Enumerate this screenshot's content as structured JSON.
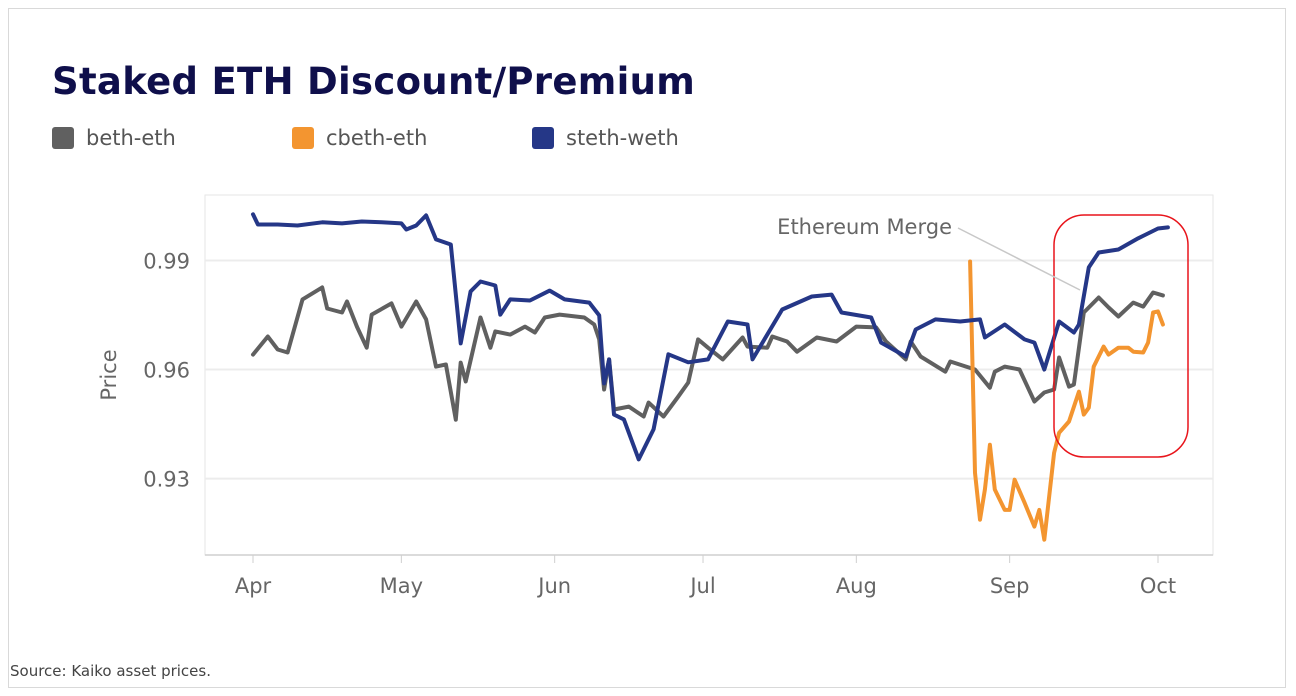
{
  "source": "Source: Kaiko asset prices.",
  "chart_data": {
    "type": "line",
    "title": "Staked ETH Discount/Premium",
    "xlabel": "",
    "ylabel": "Price",
    "legend_position": "top-left",
    "grid": true,
    "ylim": [
      0.909,
      1.008
    ],
    "y_ticks": [
      "0.93",
      "0.96",
      "0.99"
    ],
    "x_ticks": [
      {
        "label": "Apr",
        "date": "04-01"
      },
      {
        "label": "May",
        "date": "05-01"
      },
      {
        "label": "Jun",
        "date": "06-01"
      },
      {
        "label": "Jul",
        "date": "07-01"
      },
      {
        "label": "Aug",
        "date": "08-01"
      },
      {
        "label": "Sep",
        "date": "09-01"
      },
      {
        "label": "Oct",
        "date": "10-01"
      }
    ],
    "annotation": {
      "text": "Ethereum Merge",
      "date": "09-15",
      "highlight_color": "#e8141b"
    },
    "series": [
      {
        "name": "beth-eth",
        "color": "#606060",
        "points": [
          [
            "04-01",
            0.9641
          ],
          [
            "04-04",
            0.9691
          ],
          [
            "04-06",
            0.9655
          ],
          [
            "04-08",
            0.9647
          ],
          [
            "04-11",
            0.9793
          ],
          [
            "04-15",
            0.9826
          ],
          [
            "04-16",
            0.9768
          ],
          [
            "04-19",
            0.9757
          ],
          [
            "04-20",
            0.9787
          ],
          [
            "04-22",
            0.9718
          ],
          [
            "04-24",
            0.966
          ],
          [
            "04-25",
            0.9751
          ],
          [
            "04-29",
            0.9782
          ],
          [
            "05-01",
            0.9718
          ],
          [
            "05-04",
            0.9787
          ],
          [
            "05-06",
            0.9738
          ],
          [
            "05-08",
            0.9608
          ],
          [
            "05-10",
            0.9614
          ],
          [
            "05-12",
            0.9462
          ],
          [
            "05-13",
            0.9619
          ],
          [
            "05-14",
            0.9567
          ],
          [
            "05-17",
            0.9743
          ],
          [
            "05-19",
            0.966
          ],
          [
            "05-20",
            0.9705
          ],
          [
            "05-23",
            0.9696
          ],
          [
            "05-26",
            0.9718
          ],
          [
            "05-28",
            0.9702
          ],
          [
            "05-30",
            0.9743
          ],
          [
            "06-02",
            0.9751
          ],
          [
            "06-07",
            0.9743
          ],
          [
            "06-09",
            0.9724
          ],
          [
            "06-10",
            0.9683
          ],
          [
            "06-11",
            0.9545
          ],
          [
            "06-12",
            0.9628
          ],
          [
            "06-13",
            0.949
          ],
          [
            "06-16",
            0.9498
          ],
          [
            "06-19",
            0.9471
          ],
          [
            "06-20",
            0.9509
          ],
          [
            "06-23",
            0.9471
          ],
          [
            "06-26",
            0.9526
          ],
          [
            "06-28",
            0.9564
          ],
          [
            "06-30",
            0.9683
          ],
          [
            "07-02",
            0.966
          ],
          [
            "07-05",
            0.9628
          ],
          [
            "07-09",
            0.9688
          ],
          [
            "07-10",
            0.9663
          ],
          [
            "07-14",
            0.966
          ],
          [
            "07-15",
            0.9691
          ],
          [
            "07-18",
            0.9677
          ],
          [
            "07-20",
            0.9649
          ],
          [
            "07-24",
            0.9688
          ],
          [
            "07-28",
            0.9677
          ],
          [
            "08-01",
            0.9718
          ],
          [
            "08-05",
            0.9716
          ],
          [
            "08-07",
            0.9677
          ],
          [
            "08-11",
            0.9628
          ],
          [
            "08-12",
            0.9677
          ],
          [
            "08-14",
            0.9636
          ],
          [
            "08-19",
            0.9594
          ],
          [
            "08-20",
            0.9622
          ],
          [
            "08-25",
            0.96
          ],
          [
            "08-28",
            0.955
          ],
          [
            "08-29",
            0.9594
          ],
          [
            "08-31",
            0.9608
          ],
          [
            "09-03",
            0.96
          ],
          [
            "09-06",
            0.9512
          ],
          [
            "09-08",
            0.9537
          ],
          [
            "09-10",
            0.9545
          ],
          [
            "09-11",
            0.9633
          ],
          [
            "09-13",
            0.9553
          ],
          [
            "09-14",
            0.9559
          ],
          [
            "09-16",
            0.9757
          ],
          [
            "09-19",
            0.9798
          ],
          [
            "09-21",
            0.9771
          ],
          [
            "09-23",
            0.9746
          ],
          [
            "09-26",
            0.9784
          ],
          [
            "09-28",
            0.9773
          ],
          [
            "09-30",
            0.9812
          ],
          [
            "10-02",
            0.9804
          ]
        ]
      },
      {
        "name": "cbeth-eth",
        "color": "#f39530",
        "points": [
          [
            "08-24",
            0.9897
          ],
          [
            "08-25",
            0.9316
          ],
          [
            "08-26",
            0.9187
          ],
          [
            "08-27",
            0.927
          ],
          [
            "08-28",
            0.9393
          ],
          [
            "08-29",
            0.927
          ],
          [
            "08-31",
            0.9214
          ],
          [
            "09-01",
            0.9214
          ],
          [
            "09-02",
            0.9297
          ],
          [
            "09-04",
            0.9234
          ],
          [
            "09-06",
            0.9168
          ],
          [
            "09-07",
            0.9214
          ],
          [
            "09-08",
            0.9132
          ],
          [
            "09-10",
            0.9371
          ],
          [
            "09-11",
            0.9426
          ],
          [
            "09-13",
            0.9457
          ],
          [
            "09-15",
            0.9539
          ],
          [
            "09-16",
            0.9476
          ],
          [
            "09-17",
            0.9495
          ],
          [
            "09-18",
            0.9608
          ],
          [
            "09-20",
            0.9663
          ],
          [
            "09-21",
            0.9641
          ],
          [
            "09-23",
            0.966
          ],
          [
            "09-25",
            0.966
          ],
          [
            "09-26",
            0.9649
          ],
          [
            "09-28",
            0.9647
          ],
          [
            "09-29",
            0.9674
          ],
          [
            "09-30",
            0.9757
          ],
          [
            "10-01",
            0.976
          ],
          [
            "10-02",
            0.9724
          ]
        ]
      },
      {
        "name": "steth-weth",
        "color": "#253787",
        "points": [
          [
            "04-01",
            1.0027
          ],
          [
            "04-02",
            0.9999
          ],
          [
            "04-06",
            0.9999
          ],
          [
            "04-10",
            0.9996
          ],
          [
            "04-15",
            1.0005
          ],
          [
            "04-19",
            1.0002
          ],
          [
            "04-23",
            1.0007
          ],
          [
            "04-27",
            1.0005
          ],
          [
            "05-01",
            1.0002
          ],
          [
            "05-02",
            0.9985
          ],
          [
            "05-04",
            0.9996
          ],
          [
            "05-06",
            1.0024
          ],
          [
            "05-08",
            0.9958
          ],
          [
            "05-11",
            0.9944
          ],
          [
            "05-13",
            0.9672
          ],
          [
            "05-15",
            0.9815
          ],
          [
            "05-17",
            0.9842
          ],
          [
            "05-20",
            0.9831
          ],
          [
            "05-21",
            0.9751
          ],
          [
            "05-23",
            0.9793
          ],
          [
            "05-27",
            0.979
          ],
          [
            "05-31",
            0.9817
          ],
          [
            "06-03",
            0.9793
          ],
          [
            "06-08",
            0.9784
          ],
          [
            "06-10",
            0.9749
          ],
          [
            "06-11",
            0.9562
          ],
          [
            "06-12",
            0.9628
          ],
          [
            "06-13",
            0.9476
          ],
          [
            "06-15",
            0.9463
          ],
          [
            "06-18",
            0.9353
          ],
          [
            "06-21",
            0.9436
          ],
          [
            "06-24",
            0.9642
          ],
          [
            "06-28",
            0.962
          ],
          [
            "07-02",
            0.9628
          ],
          [
            "07-06",
            0.9732
          ],
          [
            "07-10",
            0.9724
          ],
          [
            "07-11",
            0.9628
          ],
          [
            "07-17",
            0.9765
          ],
          [
            "07-23",
            0.9801
          ],
          [
            "07-27",
            0.9806
          ],
          [
            "07-29",
            0.9757
          ],
          [
            "08-04",
            0.9743
          ],
          [
            "08-06",
            0.9674
          ],
          [
            "08-11",
            0.9636
          ],
          [
            "08-13",
            0.971
          ],
          [
            "08-17",
            0.9738
          ],
          [
            "08-22",
            0.9732
          ],
          [
            "08-26",
            0.9738
          ],
          [
            "08-27",
            0.9688
          ],
          [
            "08-31",
            0.9724
          ],
          [
            "09-04",
            0.9683
          ],
          [
            "09-06",
            0.9674
          ],
          [
            "09-08",
            0.96
          ],
          [
            "09-11",
            0.9732
          ],
          [
            "09-14",
            0.9702
          ],
          [
            "09-15",
            0.9724
          ],
          [
            "09-17",
            0.9881
          ],
          [
            "09-19",
            0.9922
          ],
          [
            "09-23",
            0.993
          ],
          [
            "09-27",
            0.9961
          ],
          [
            "10-01",
            0.9988
          ],
          [
            "10-03",
            0.9991
          ]
        ]
      }
    ]
  }
}
